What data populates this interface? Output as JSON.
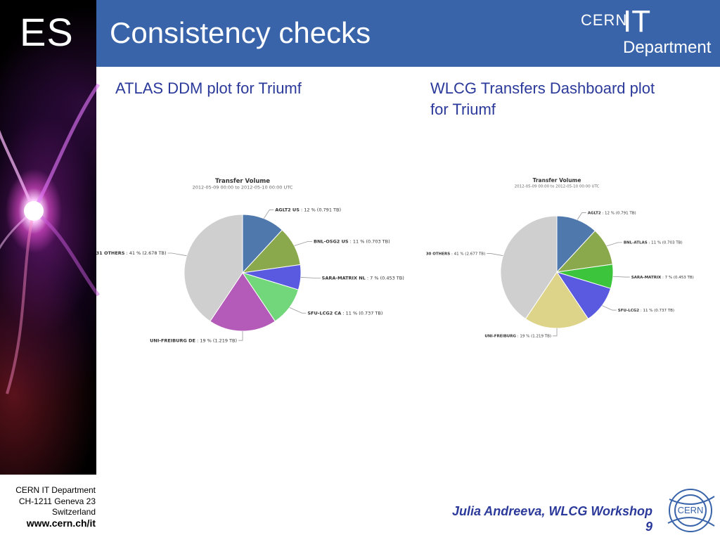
{
  "slide": {
    "section": "ES",
    "title": "Consistency checks",
    "logo": {
      "cern": "CERN",
      "it": "IT",
      "department": "Department"
    },
    "captions": {
      "left": "ATLAS DDM plot for Triumf",
      "right": "WLCG Transfers Dashboard plot for Triumf"
    },
    "footer": {
      "org": "CERN IT Department",
      "address": "CH-1211 Geneva 23",
      "country": "Switzerland",
      "url": "www.cern.ch/it",
      "author": "Julia Andreeva, WLCG Workshop",
      "page": "9"
    },
    "cern_badge": "CERN"
  },
  "chart_data": [
    {
      "type": "pie",
      "title": "Transfer Volume",
      "subtitle": "2012-05-09 00:00 to 2012-05-10 00:00 UTC",
      "slices": [
        {
          "name": "AGLT2 US",
          "percent": 12,
          "value": "0.791 TB",
          "label": "AGLT2 US : 12 % (0.791 TB)",
          "color": "#4f78ad"
        },
        {
          "name": "BNL-OSG2 US",
          "percent": 11,
          "value": "0.703 TB",
          "label": "BNL-OSG2 US : 11 % (0.703 TB)",
          "color": "#8aa84c"
        },
        {
          "name": "SARA-MATRIX NL",
          "percent": 7,
          "value": "0.453 TB",
          "label": "SARA-MATRIX NL : 7 % (0.453 TB)",
          "color": "#5a5ae0"
        },
        {
          "name": "SFU-LCG2 CA",
          "percent": 11,
          "value": "0.737 TB",
          "label": "SFU-LCG2 CA : 11 % (0.737 TB)",
          "color": "#72d67a"
        },
        {
          "name": "UNI-FREIBURG DE",
          "percent": 19,
          "value": "1.219 TB",
          "label": "UNI-FREIBURG DE : 19 % (1.219 TB)",
          "color": "#b45ab8"
        },
        {
          "name": "31 OTHERS",
          "percent": 41,
          "value": "2.678 TB",
          "label": "31 OTHERS : 41 % (2.678 TB)",
          "color": "#cfcfcf"
        }
      ]
    },
    {
      "type": "pie",
      "title": "Transfer Volume",
      "subtitle": "2012-05-09 00:00 to 2012-05-10 00:00 UTC",
      "slices": [
        {
          "name": "AGLT2",
          "percent": 12,
          "value": "0.791 TB",
          "label": "AGLT2 : 12 % (0.791 TB)",
          "color": "#4f78ad"
        },
        {
          "name": "BNL-ATLAS",
          "percent": 11,
          "value": "0.703 TB",
          "label": "BNL-ATLAS : 11 % (0.703 TB)",
          "color": "#8aa84c"
        },
        {
          "name": "SARA-MATRIX",
          "percent": 7,
          "value": "0.453 TB",
          "label": "SARA-MATRIX : 7 % (0.453 TB)",
          "color": "#3cc43c"
        },
        {
          "name": "SFU-LCG2",
          "percent": 11,
          "value": "0.737 TB",
          "label": "SFU-LCG2 : 11 % (0.737 TB)",
          "color": "#5a5ae0"
        },
        {
          "name": "UNI-FREIBURG",
          "percent": 19,
          "value": "1.219 TB",
          "label": "UNI-FREIBURG : 19 % (1.219 TB)",
          "color": "#ddd48a"
        },
        {
          "name": "30 OTHERS",
          "percent": 41,
          "value": "2.677 TB",
          "label": "30 OTHERS : 41 % (2.677 TB)",
          "color": "#cfcfcf"
        }
      ]
    }
  ]
}
